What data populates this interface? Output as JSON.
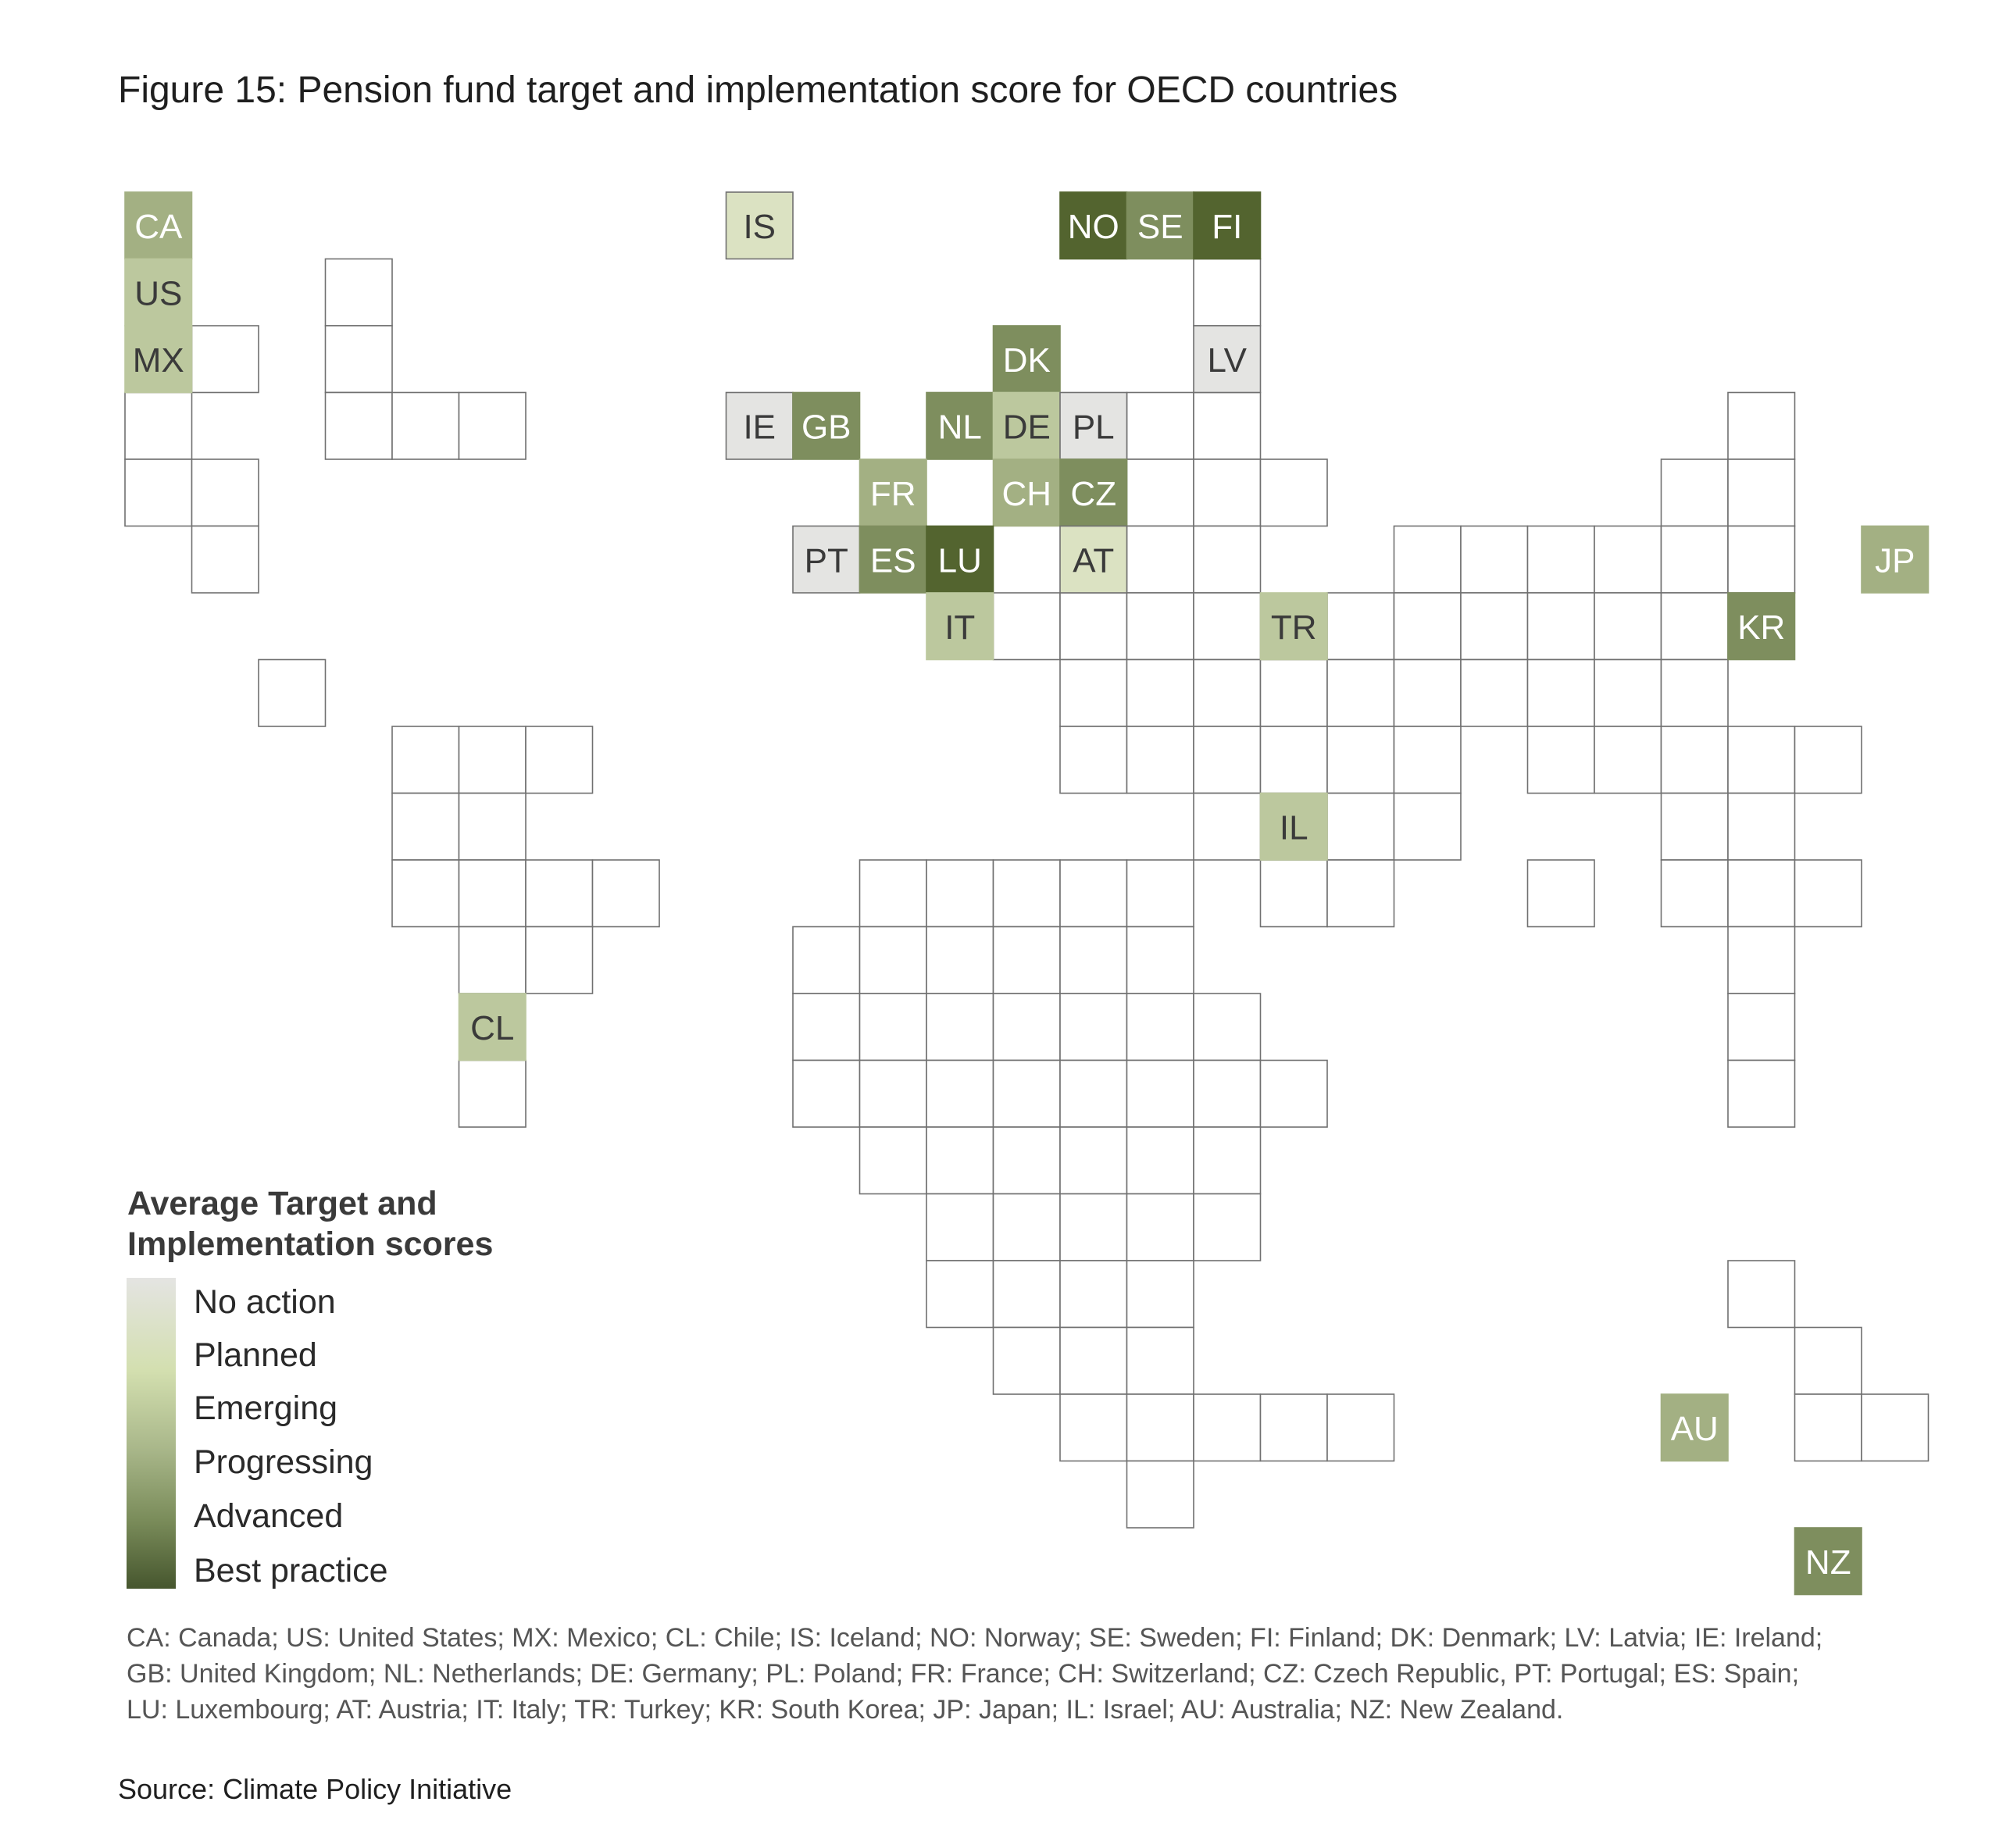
{
  "title": "Figure 15: Pension fund target and implementation score for OECD countries",
  "legend": {
    "title_line1": "Average Target and",
    "title_line2": "Implementation scores",
    "levels": [
      "No action",
      "Planned",
      "Emerging",
      "Progressing",
      "Advanced",
      "Best practice"
    ]
  },
  "colors": {
    "no_action": "#e4e4e2",
    "planned": "#dbe2c2",
    "emerging": "#bcc89e",
    "progressing": "#a3b083",
    "advanced": "#7e8e5e",
    "best_practice": "#53642f",
    "empty_fill": "#ffffff",
    "grid_line": "#707070"
  },
  "countries": [
    {
      "code": "CA",
      "col": 0,
      "row": 0,
      "level": "progressing"
    },
    {
      "code": "US",
      "col": 0,
      "row": 1,
      "level": "emerging"
    },
    {
      "code": "MX",
      "col": 0,
      "row": 2,
      "level": "emerging"
    },
    {
      "code": "CL",
      "col": 5,
      "row": 12,
      "level": "emerging"
    },
    {
      "code": "IS",
      "col": 9,
      "row": 0,
      "level": "planned"
    },
    {
      "code": "NO",
      "col": 14,
      "row": 0,
      "level": "best_practice"
    },
    {
      "code": "SE",
      "col": 15,
      "row": 0,
      "level": "advanced"
    },
    {
      "code": "FI",
      "col": 16,
      "row": 0,
      "level": "best_practice"
    },
    {
      "code": "DK",
      "col": 13,
      "row": 2,
      "level": "advanced"
    },
    {
      "code": "LV",
      "col": 16,
      "row": 2,
      "level": "no_action"
    },
    {
      "code": "IE",
      "col": 9,
      "row": 3,
      "level": "no_action"
    },
    {
      "code": "GB",
      "col": 10,
      "row": 3,
      "level": "advanced"
    },
    {
      "code": "NL",
      "col": 12,
      "row": 3,
      "level": "advanced"
    },
    {
      "code": "DE",
      "col": 13,
      "row": 3,
      "level": "emerging"
    },
    {
      "code": "PL",
      "col": 14,
      "row": 3,
      "level": "no_action"
    },
    {
      "code": "FR",
      "col": 11,
      "row": 4,
      "level": "progressing"
    },
    {
      "code": "CH",
      "col": 13,
      "row": 4,
      "level": "progressing"
    },
    {
      "code": "CZ",
      "col": 14,
      "row": 4,
      "level": "advanced"
    },
    {
      "code": "PT",
      "col": 10,
      "row": 5,
      "level": "no_action"
    },
    {
      "code": "ES",
      "col": 11,
      "row": 5,
      "level": "advanced"
    },
    {
      "code": "LU",
      "col": 12,
      "row": 5,
      "level": "best_practice"
    },
    {
      "code": "AT",
      "col": 14,
      "row": 5,
      "level": "planned"
    },
    {
      "code": "JP",
      "col": 26,
      "row": 5,
      "level": "progressing"
    },
    {
      "code": "IT",
      "col": 12,
      "row": 6,
      "level": "emerging"
    },
    {
      "code": "TR",
      "col": 17,
      "row": 6,
      "level": "emerging"
    },
    {
      "code": "KR",
      "col": 24,
      "row": 6,
      "level": "advanced"
    },
    {
      "code": "IL",
      "col": 17,
      "row": 9,
      "level": "emerging"
    },
    {
      "code": "AU",
      "col": 23,
      "row": 18,
      "level": "progressing"
    },
    {
      "code": "NZ",
      "col": 25,
      "row": 20,
      "level": "advanced"
    }
  ],
  "footnote": {
    "line1": "CA: Canada; US: United States; MX: Mexico; CL: Chile; IS: Iceland; NO: Norway; SE: Sweden; FI: Finland; DK: Denmark; LV: Latvia; IE: Ireland;",
    "line2": "GB: United Kingdom; NL: Netherlands; DE: Germany; PL: Poland; FR: France; CH: Switzerland; CZ: Czech Republic, PT: Portugal; ES: Spain;",
    "line3": "LU: Luxembourg; AT: Austria; IT: Italy; TR: Turkey; KR: South Korea; JP: Japan; IL: Israel; AU: Australia; NZ: New Zealand."
  },
  "source": "Source: Climate Policy Initiative"
}
